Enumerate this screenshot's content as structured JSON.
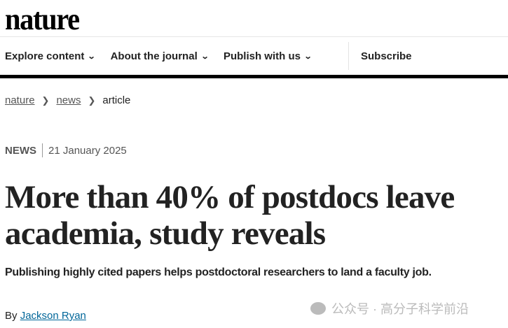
{
  "header": {
    "logo": "nature"
  },
  "nav": {
    "items": [
      {
        "label": "Explore content"
      },
      {
        "label": "About the journal"
      },
      {
        "label": "Publish with us"
      }
    ],
    "subscribe": "Subscribe"
  },
  "breadcrumb": [
    "nature",
    "news",
    "article"
  ],
  "article": {
    "type": "NEWS",
    "date": "21 January 2025",
    "title": "More than 40% of postdocs leave academia, study reveals",
    "standfirst": "Publishing highly cited papers helps postdoctoral researchers to land a faculty job.",
    "by": "By",
    "author": "Jackson Ryan"
  },
  "watermark": "公众号 · 高分子科学前沿"
}
